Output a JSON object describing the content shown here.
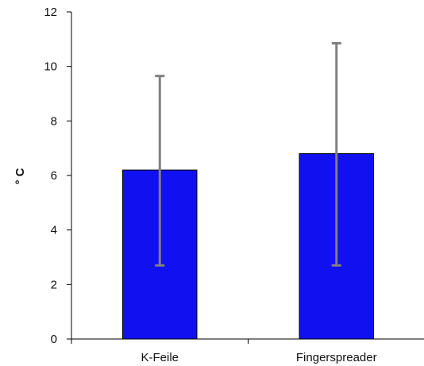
{
  "chart_data": {
    "type": "bar",
    "title": "",
    "xlabel": "",
    "ylabel": "° C",
    "ylim": [
      0,
      12
    ],
    "yticks": [
      0,
      2,
      4,
      6,
      8,
      10,
      12
    ],
    "grid": false,
    "categories": [
      "K-Feile",
      "Fingerspreader"
    ],
    "values": [
      6.2,
      6.8
    ],
    "error_bars": [
      {
        "low": 2.7,
        "high": 9.65
      },
      {
        "low": 2.7,
        "high": 10.85
      }
    ],
    "bar_color": "#1010f0",
    "bar_edge_color": "#000000",
    "error_bar_color": "#808080"
  }
}
